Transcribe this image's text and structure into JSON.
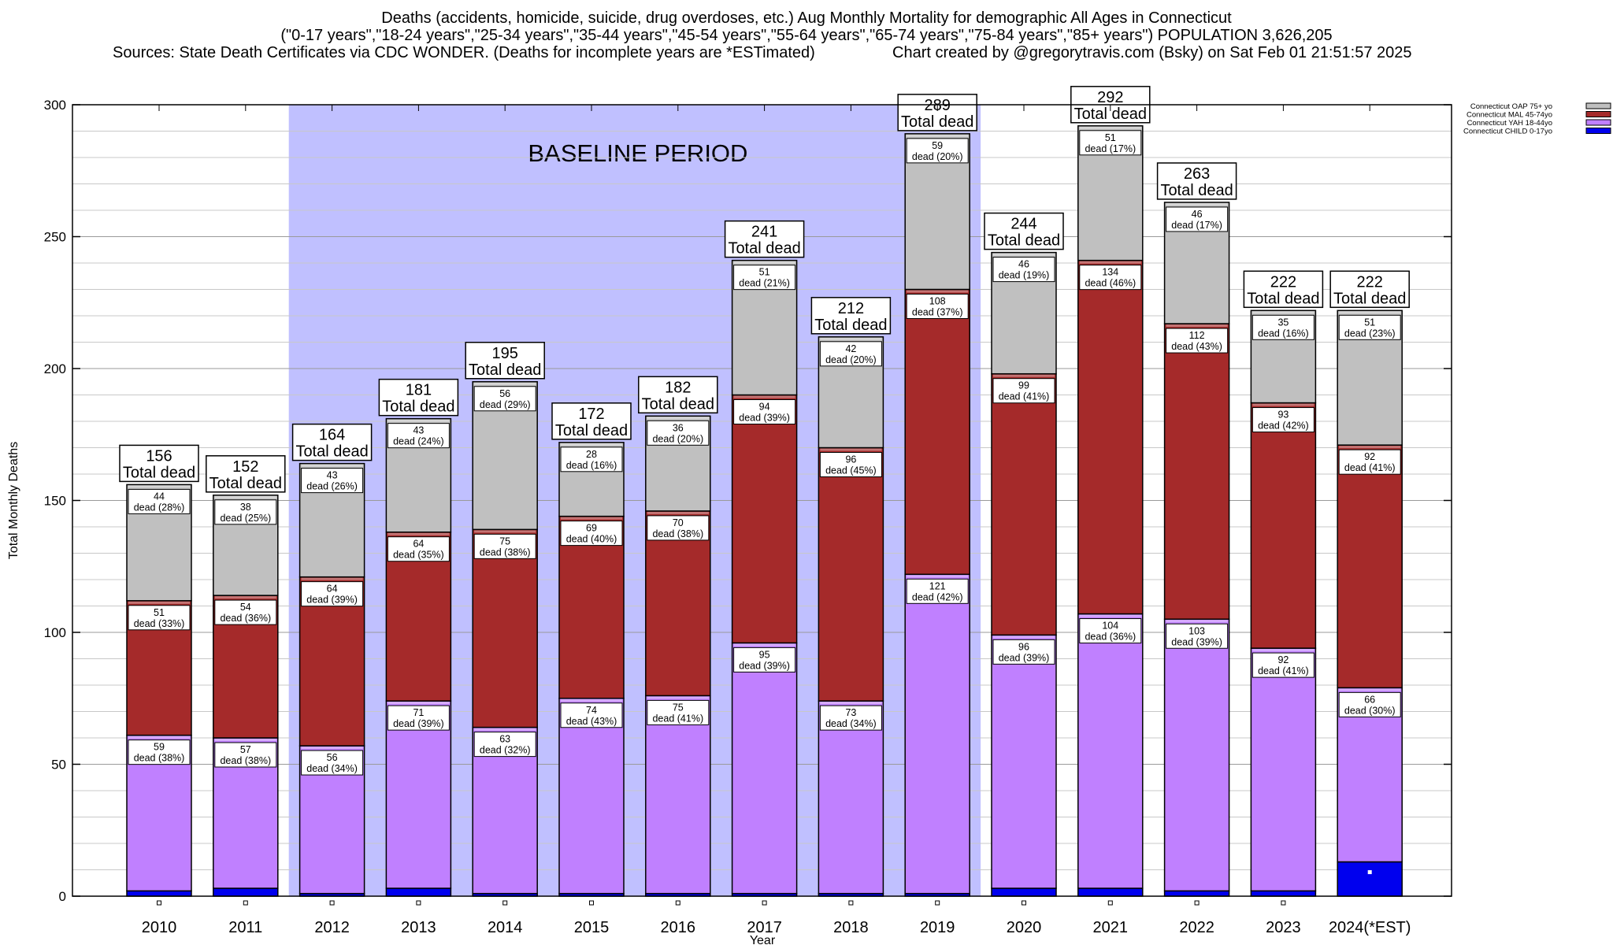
{
  "title": {
    "line1": "Deaths (accidents, homicide, suicide, drug overdoses, etc.) Aug Monthly Mortality for demographic All Ages in Connecticut",
    "line2": "(\"0-17 years\",\"18-24 years\",\"25-34 years\",\"35-44 years\",\"45-54 years\",\"55-64 years\",\"65-74 years\",\"75-84 years\",\"85+ years\") POPULATION 3,626,205",
    "sources": "Sources: State Death Certificates via CDC WONDER. (Deaths for incomplete years are *ESTimated)",
    "credit": "Chart created by @gregorytravis.com (Bsky) on Sat Feb 01 21:51:57 2025"
  },
  "chart_data": {
    "type": "bar",
    "stacked": true,
    "xlabel": "Year",
    "ylabel": "Total Monthly Deaths",
    "ylim": [
      0,
      300
    ],
    "y_ticks": [
      0,
      50,
      100,
      150,
      200,
      250,
      300
    ],
    "grid": true,
    "legend_position": "top-right",
    "categories": [
      "2010",
      "2011",
      "2012",
      "2013",
      "2014",
      "2015",
      "2016",
      "2017",
      "2018",
      "2019",
      "2020",
      "2021",
      "2022",
      "2023",
      "2024(*EST)"
    ],
    "totals": [
      156,
      152,
      164,
      181,
      195,
      172,
      182,
      241,
      212,
      289,
      244,
      292,
      263,
      222,
      222
    ],
    "total_suffix": "Total dead",
    "dead_word": "dead",
    "baseline": {
      "label": "BASELINE PERIOD",
      "from": "2012",
      "to": "2019",
      "color": "#c0c0ff"
    },
    "series": [
      {
        "name": "Connecticut CHILD 0-17yo",
        "color": "#0000ee",
        "values": [
          2,
          3,
          1,
          3,
          1,
          1,
          1,
          1,
          1,
          1,
          3,
          3,
          2,
          2,
          13
        ],
        "labels": null
      },
      {
        "name": "Connecticut YAH 18-44yo",
        "color": "#c080ff",
        "values": [
          59,
          57,
          56,
          71,
          63,
          74,
          75,
          95,
          73,
          121,
          96,
          104,
          103,
          92,
          66
        ],
        "labels": [
          "(38%)",
          "(38%)",
          "(34%)",
          "(39%)",
          "(32%)",
          "(43%)",
          "(41%)",
          "(39%)",
          "(34%)",
          "(42%)",
          "(39%)",
          "(36%)",
          "(39%)",
          "(41%)",
          "(30%)"
        ]
      },
      {
        "name": "Connecticut MAL 45-74yo",
        "color": "#a52a2a",
        "values": [
          51,
          54,
          64,
          64,
          75,
          69,
          70,
          94,
          96,
          108,
          99,
          134,
          112,
          93,
          92
        ],
        "labels": [
          "(33%)",
          "(36%)",
          "(39%)",
          "(35%)",
          "(38%)",
          "(40%)",
          "(38%)",
          "(39%)",
          "(45%)",
          "(37%)",
          "(41%)",
          "(46%)",
          "(43%)",
          "(42%)",
          "(41%)"
        ]
      },
      {
        "name": "Connecticut OAP 75+ yo",
        "color": "#c0c0c0",
        "values": [
          44,
          38,
          43,
          43,
          56,
          28,
          36,
          51,
          42,
          59,
          46,
          51,
          46,
          35,
          51
        ],
        "labels": [
          "(28%)",
          "(25%)",
          "(26%)",
          "(24%)",
          "(29%)",
          "(16%)",
          "(20%)",
          "(21%)",
          "(20%)",
          "(20%)",
          "(19%)",
          "(17%)",
          "(17%)",
          "(16%)",
          "(23%)"
        ]
      }
    ]
  }
}
